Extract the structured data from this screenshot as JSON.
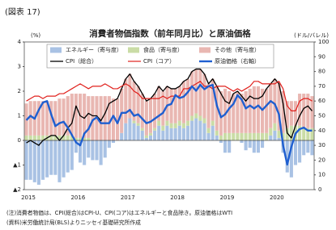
{
  "chart_data": {
    "type": "bar-line",
    "figure_label": "(図表 17)",
    "title": "消費者物価指数（前年同月比）と原油価格",
    "y_label": "(%)",
    "y2_label": "(ドル/バレル)",
    "categories": [
      "2015",
      null,
      null,
      null,
      null,
      null,
      null,
      null,
      null,
      null,
      null,
      null,
      "2016",
      null,
      null,
      null,
      null,
      null,
      null,
      null,
      null,
      null,
      null,
      null,
      "2017",
      null,
      null,
      null,
      null,
      null,
      null,
      null,
      null,
      null,
      null,
      null,
      "2018",
      null,
      null,
      null,
      null,
      null,
      null,
      null,
      null,
      null,
      null,
      null,
      "2019",
      null,
      null,
      null,
      null,
      null,
      null,
      null,
      null,
      null,
      null,
      null,
      "2020",
      null,
      null,
      null,
      null,
      null,
      null,
      null,
      null,
      null
    ],
    "ylim": [
      -2,
      4
    ],
    "yticks": [
      {
        "value": -2,
        "label": "▲2"
      },
      {
        "value": -1,
        "label": "▲1"
      },
      0,
      1,
      2,
      3,
      4
    ],
    "y2lim": [
      0,
      100
    ],
    "y2ticks": [
      0,
      10,
      20,
      30,
      40,
      50,
      60,
      70,
      80,
      90,
      100
    ],
    "grid": false,
    "series": [
      {
        "name": "エネルギー（寄与度）",
        "kind": "bar",
        "color": "#a9c2e4",
        "values": [
          -1.6,
          -1.6,
          -1.7,
          -1.8,
          -1.6,
          -1.5,
          -1.4,
          -1.4,
          -1.7,
          -1.5,
          -1.3,
          -1.2,
          -0.5,
          -0.9,
          -1.0,
          -0.7,
          -0.8,
          -0.8,
          -1.0,
          -0.7,
          -0.3,
          -0.1,
          0.0,
          0.3,
          0.7,
          0.9,
          0.7,
          0.6,
          0.4,
          0.1,
          0.2,
          0.4,
          0.6,
          0.4,
          0.6,
          0.5,
          0.5,
          0.6,
          0.5,
          0.6,
          0.8,
          0.9,
          0.8,
          0.7,
          0.3,
          0.6,
          0.2,
          -0.1,
          -0.5,
          -0.5,
          0.0,
          0.0,
          -0.1,
          -0.4,
          -0.3,
          -0.5,
          -0.5,
          -0.3,
          0.0,
          0.2,
          0.4,
          0.1,
          -0.5,
          -1.3,
          -1.5,
          -1.0,
          -0.9,
          -0.6,
          -0.5,
          -0.6
        ]
      },
      {
        "name": "食品（寄与度）",
        "kind": "bar",
        "color": "#cadca6",
        "values": [
          0.2,
          0.2,
          0.2,
          0.2,
          0.2,
          0.2,
          0.2,
          0.2,
          0.2,
          0.2,
          0.2,
          0.2,
          0.1,
          0.1,
          0.1,
          0.1,
          0.0,
          0.0,
          0.0,
          0.0,
          0.0,
          0.0,
          0.0,
          0.0,
          0.0,
          0.0,
          0.1,
          0.1,
          0.1,
          0.1,
          0.1,
          0.1,
          0.2,
          0.2,
          0.2,
          0.2,
          0.2,
          0.2,
          0.2,
          0.2,
          0.2,
          0.2,
          0.2,
          0.2,
          0.2,
          0.2,
          0.2,
          0.2,
          0.3,
          0.3,
          0.3,
          0.3,
          0.3,
          0.3,
          0.3,
          0.3,
          0.3,
          0.3,
          0.3,
          0.3,
          0.3,
          0.3,
          0.3,
          0.5,
          0.6,
          0.6,
          0.6,
          0.5,
          0.5,
          0.5
        ]
      },
      {
        "name": "その他（寄与度）",
        "kind": "bar",
        "color": "#e9b7b2",
        "values": [
          1.3,
          1.4,
          1.4,
          1.4,
          1.4,
          1.4,
          1.4,
          1.4,
          1.5,
          1.5,
          1.6,
          1.7,
          1.8,
          1.8,
          1.8,
          1.7,
          1.8,
          1.8,
          1.8,
          1.8,
          1.8,
          1.7,
          1.7,
          1.8,
          1.8,
          1.8,
          1.6,
          1.5,
          1.4,
          1.4,
          1.4,
          1.4,
          1.4,
          1.4,
          1.4,
          1.4,
          1.4,
          1.4,
          1.7,
          1.7,
          1.8,
          1.8,
          1.9,
          1.8,
          1.8,
          1.7,
          1.8,
          1.8,
          1.8,
          1.7,
          1.6,
          1.7,
          1.6,
          1.7,
          1.8,
          1.9,
          1.9,
          1.8,
          1.8,
          1.8,
          1.8,
          1.9,
          1.7,
          1.1,
          1.0,
          1.0,
          1.3,
          1.4,
          1.4,
          1.3
        ]
      },
      {
        "name": "CPI（総合）",
        "kind": "line",
        "color": "#000000",
        "width": 1.3,
        "values": [
          -0.1,
          0.0,
          -0.1,
          -0.2,
          0.0,
          0.1,
          0.2,
          0.2,
          0.0,
          0.2,
          0.5,
          0.7,
          1.4,
          1.0,
          0.9,
          1.1,
          1.0,
          1.0,
          0.8,
          1.1,
          1.5,
          1.6,
          1.7,
          2.1,
          2.5,
          2.7,
          2.4,
          2.2,
          1.9,
          1.6,
          1.7,
          1.9,
          2.2,
          2.0,
          2.2,
          2.1,
          2.1,
          2.2,
          2.4,
          2.5,
          2.8,
          2.9,
          2.9,
          2.7,
          2.3,
          2.5,
          2.2,
          1.9,
          1.6,
          1.5,
          1.9,
          2.0,
          1.8,
          1.6,
          1.8,
          1.7,
          1.7,
          1.8,
          2.1,
          2.3,
          2.5,
          2.3,
          1.5,
          0.3,
          0.1,
          0.6,
          1.0,
          1.3,
          1.4,
          1.2
        ]
      },
      {
        "name": "CPI（コア）",
        "kind": "line",
        "color": "#e0201c",
        "width": 1.2,
        "values": [
          1.6,
          1.7,
          1.8,
          1.8,
          1.7,
          1.8,
          1.8,
          1.8,
          1.9,
          1.9,
          2.0,
          2.1,
          2.2,
          2.3,
          2.2,
          2.1,
          2.2,
          2.2,
          2.2,
          2.3,
          2.2,
          2.1,
          2.1,
          2.2,
          2.3,
          2.2,
          2.0,
          1.9,
          1.7,
          1.7,
          1.7,
          1.7,
          1.7,
          1.8,
          1.7,
          1.8,
          1.8,
          1.8,
          2.1,
          2.1,
          2.2,
          2.3,
          2.4,
          2.2,
          2.2,
          2.1,
          2.2,
          2.2,
          2.2,
          2.1,
          2.0,
          2.1,
          2.0,
          2.1,
          2.2,
          2.4,
          2.4,
          2.3,
          2.3,
          2.3,
          2.3,
          2.4,
          2.1,
          1.4,
          1.2,
          1.2,
          1.6,
          1.7,
          1.7,
          1.6
        ]
      },
      {
        "name": "原油価格（右軸）",
        "kind": "line",
        "axis": "y2",
        "color": "#1f5fd0",
        "width": 2.4,
        "values": [
          47,
          50,
          48,
          54,
          59,
          60,
          51,
          43,
          45,
          46,
          42,
          37,
          32,
          30,
          38,
          41,
          47,
          49,
          45,
          45,
          45,
          50,
          45,
          52,
          52,
          54,
          50,
          51,
          48,
          45,
          46,
          48,
          50,
          52,
          57,
          58,
          64,
          62,
          63,
          66,
          70,
          67,
          71,
          68,
          70,
          71,
          57,
          49,
          51,
          55,
          58,
          64,
          61,
          55,
          57,
          55,
          57,
          54,
          57,
          60,
          58,
          51,
          30,
          17,
          29,
          38,
          41,
          42,
          40,
          40
        ]
      }
    ],
    "notes": [
      "(注)消費者物価は、CPI(総合)はCPI-U、CPI(コア)はエネルギーと食品除き。原油価格はWTI",
      "(資料)米労働統計局(BLS)よりニッセイ基礎研究所作成"
    ]
  }
}
